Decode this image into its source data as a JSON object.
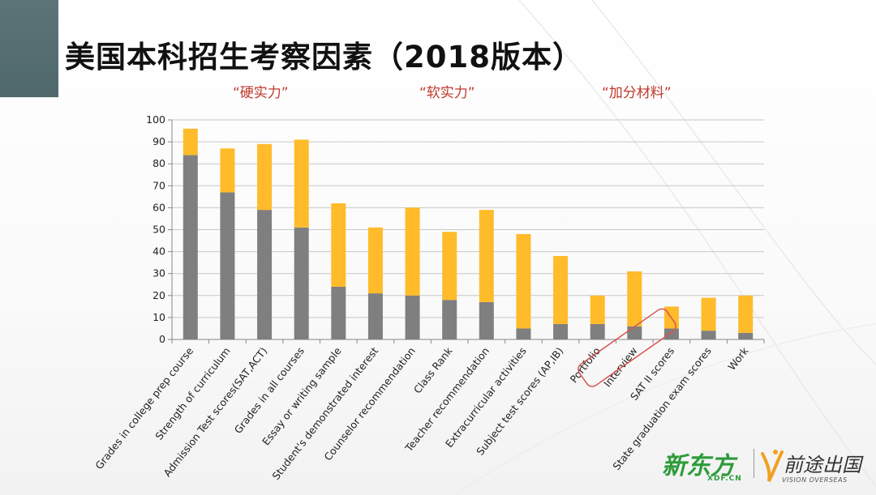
{
  "title": "美国本科招生考察因素（2018版本）",
  "group_labels": {
    "hard": "“硬实力”",
    "soft": "“软实力”",
    "extra": "“加分材料”"
  },
  "logos": {
    "xdf": "新东方",
    "xdf_sub": "XDF.CN",
    "vision": "前途出国",
    "vision_sub": "VISION OVERSEAS"
  },
  "colors": {
    "gray": "#7f7f7f",
    "orange": "#ffbb2a",
    "accent": "#5a7275",
    "highlight": "#d9534f",
    "group_label": "#c0392b"
  },
  "chart_data": {
    "type": "bar",
    "stacked": true,
    "categories": [
      "Grades in college prep course",
      "Strength of curriculum",
      "Admission Test scores(SAT,ACT)",
      "Grades in all courses",
      "Essay or writing sample",
      "Student's demonstrated interest",
      "Counselor recommendation",
      "Class Rank",
      "Teacher recommendation",
      "Extracurricular activities",
      "Subject test scores (AP,IB)",
      "Portfolio",
      "Interview",
      "SAT II scores",
      "State graduation exam scores",
      "Work"
    ],
    "series": [
      {
        "values": [
          84,
          67,
          59,
          51,
          24,
          21,
          20,
          18,
          17,
          5,
          7,
          7,
          6,
          5,
          4,
          3
        ]
      },
      {
        "values": [
          12,
          20,
          30,
          40,
          38,
          30,
          40,
          31,
          42,
          43,
          31,
          13,
          25,
          10,
          15,
          17
        ]
      }
    ],
    "yticks": [
      0,
      10,
      20,
      30,
      40,
      50,
      60,
      70,
      80,
      90,
      100
    ],
    "ylim": [
      0,
      100
    ],
    "grid": true,
    "highlighted_category": "Interview"
  }
}
